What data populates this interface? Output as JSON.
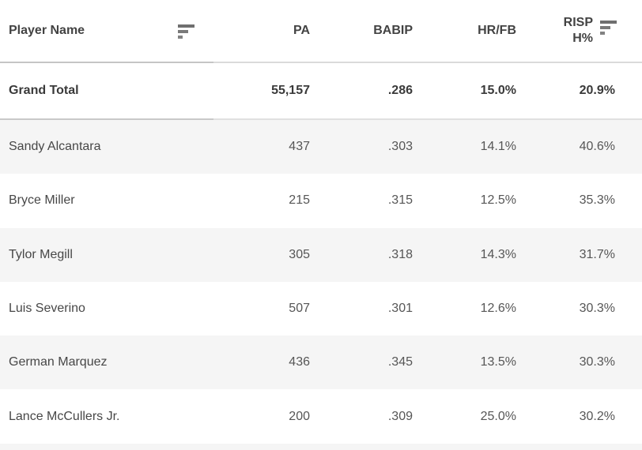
{
  "colors": {
    "background": "#ffffff",
    "row_stripe": "#f5f5f5",
    "header_text": "#434343",
    "body_text": "#565656",
    "grand_total_text": "#3a3a3a",
    "header_border_left": "#c5c5c5",
    "header_border_right": "#dadada",
    "sort_icon": "#6f6f6f"
  },
  "table": {
    "header": {
      "player_name": "Player Name",
      "pa": "PA",
      "babip": "BABIP",
      "hr_fb": "HR/FB",
      "risp_line1": "RISP",
      "risp_line2": "H%",
      "sort_icon": "sort-descending-bars"
    },
    "grand_total": {
      "name": "Grand Total",
      "pa": "55,157",
      "babip": ".286",
      "hr_fb": "15.0%",
      "risp": "20.9%"
    },
    "rows": [
      {
        "name": "Sandy Alcantara",
        "pa": "437",
        "babip": ".303",
        "hr_fb": "14.1%",
        "risp": "40.6%"
      },
      {
        "name": "Bryce Miller",
        "pa": "215",
        "babip": ".315",
        "hr_fb": "12.5%",
        "risp": "35.3%"
      },
      {
        "name": "Tylor Megill",
        "pa": "305",
        "babip": ".318",
        "hr_fb": "14.3%",
        "risp": "31.7%"
      },
      {
        "name": "Luis Severino",
        "pa": "507",
        "babip": ".301",
        "hr_fb": "12.6%",
        "risp": "30.3%"
      },
      {
        "name": "German Marquez",
        "pa": "436",
        "babip": ".345",
        "hr_fb": "13.5%",
        "risp": "30.3%"
      },
      {
        "name": "Lance McCullers Jr.",
        "pa": "200",
        "babip": ".309",
        "hr_fb": "25.0%",
        "risp": "30.2%"
      }
    ]
  },
  "chart_data": {
    "type": "table",
    "columns": [
      "Player Name",
      "PA",
      "BABIP",
      "HR/FB",
      "RISP H%"
    ],
    "rows": [
      [
        "Grand Total",
        "55,157",
        ".286",
        "15.0%",
        "20.9%"
      ],
      [
        "Sandy Alcantara",
        "437",
        ".303",
        "14.1%",
        "40.6%"
      ],
      [
        "Bryce Miller",
        "215",
        ".315",
        "12.5%",
        "35.3%"
      ],
      [
        "Tylor Megill",
        "305",
        ".318",
        "14.3%",
        "31.7%"
      ],
      [
        "Luis Severino",
        "507",
        ".301",
        "12.6%",
        "30.3%"
      ],
      [
        "German Marquez",
        "436",
        ".345",
        "13.5%",
        "30.3%"
      ],
      [
        "Lance McCullers Jr.",
        "200",
        ".309",
        "25.0%",
        "30.2%"
      ]
    ],
    "sorted_columns": [
      "Player Name",
      "RISP H%"
    ],
    "sort_direction": "descending",
    "notes": "Striped rows; numeric columns right-aligned; partial next striped row visible at bottom edge"
  }
}
